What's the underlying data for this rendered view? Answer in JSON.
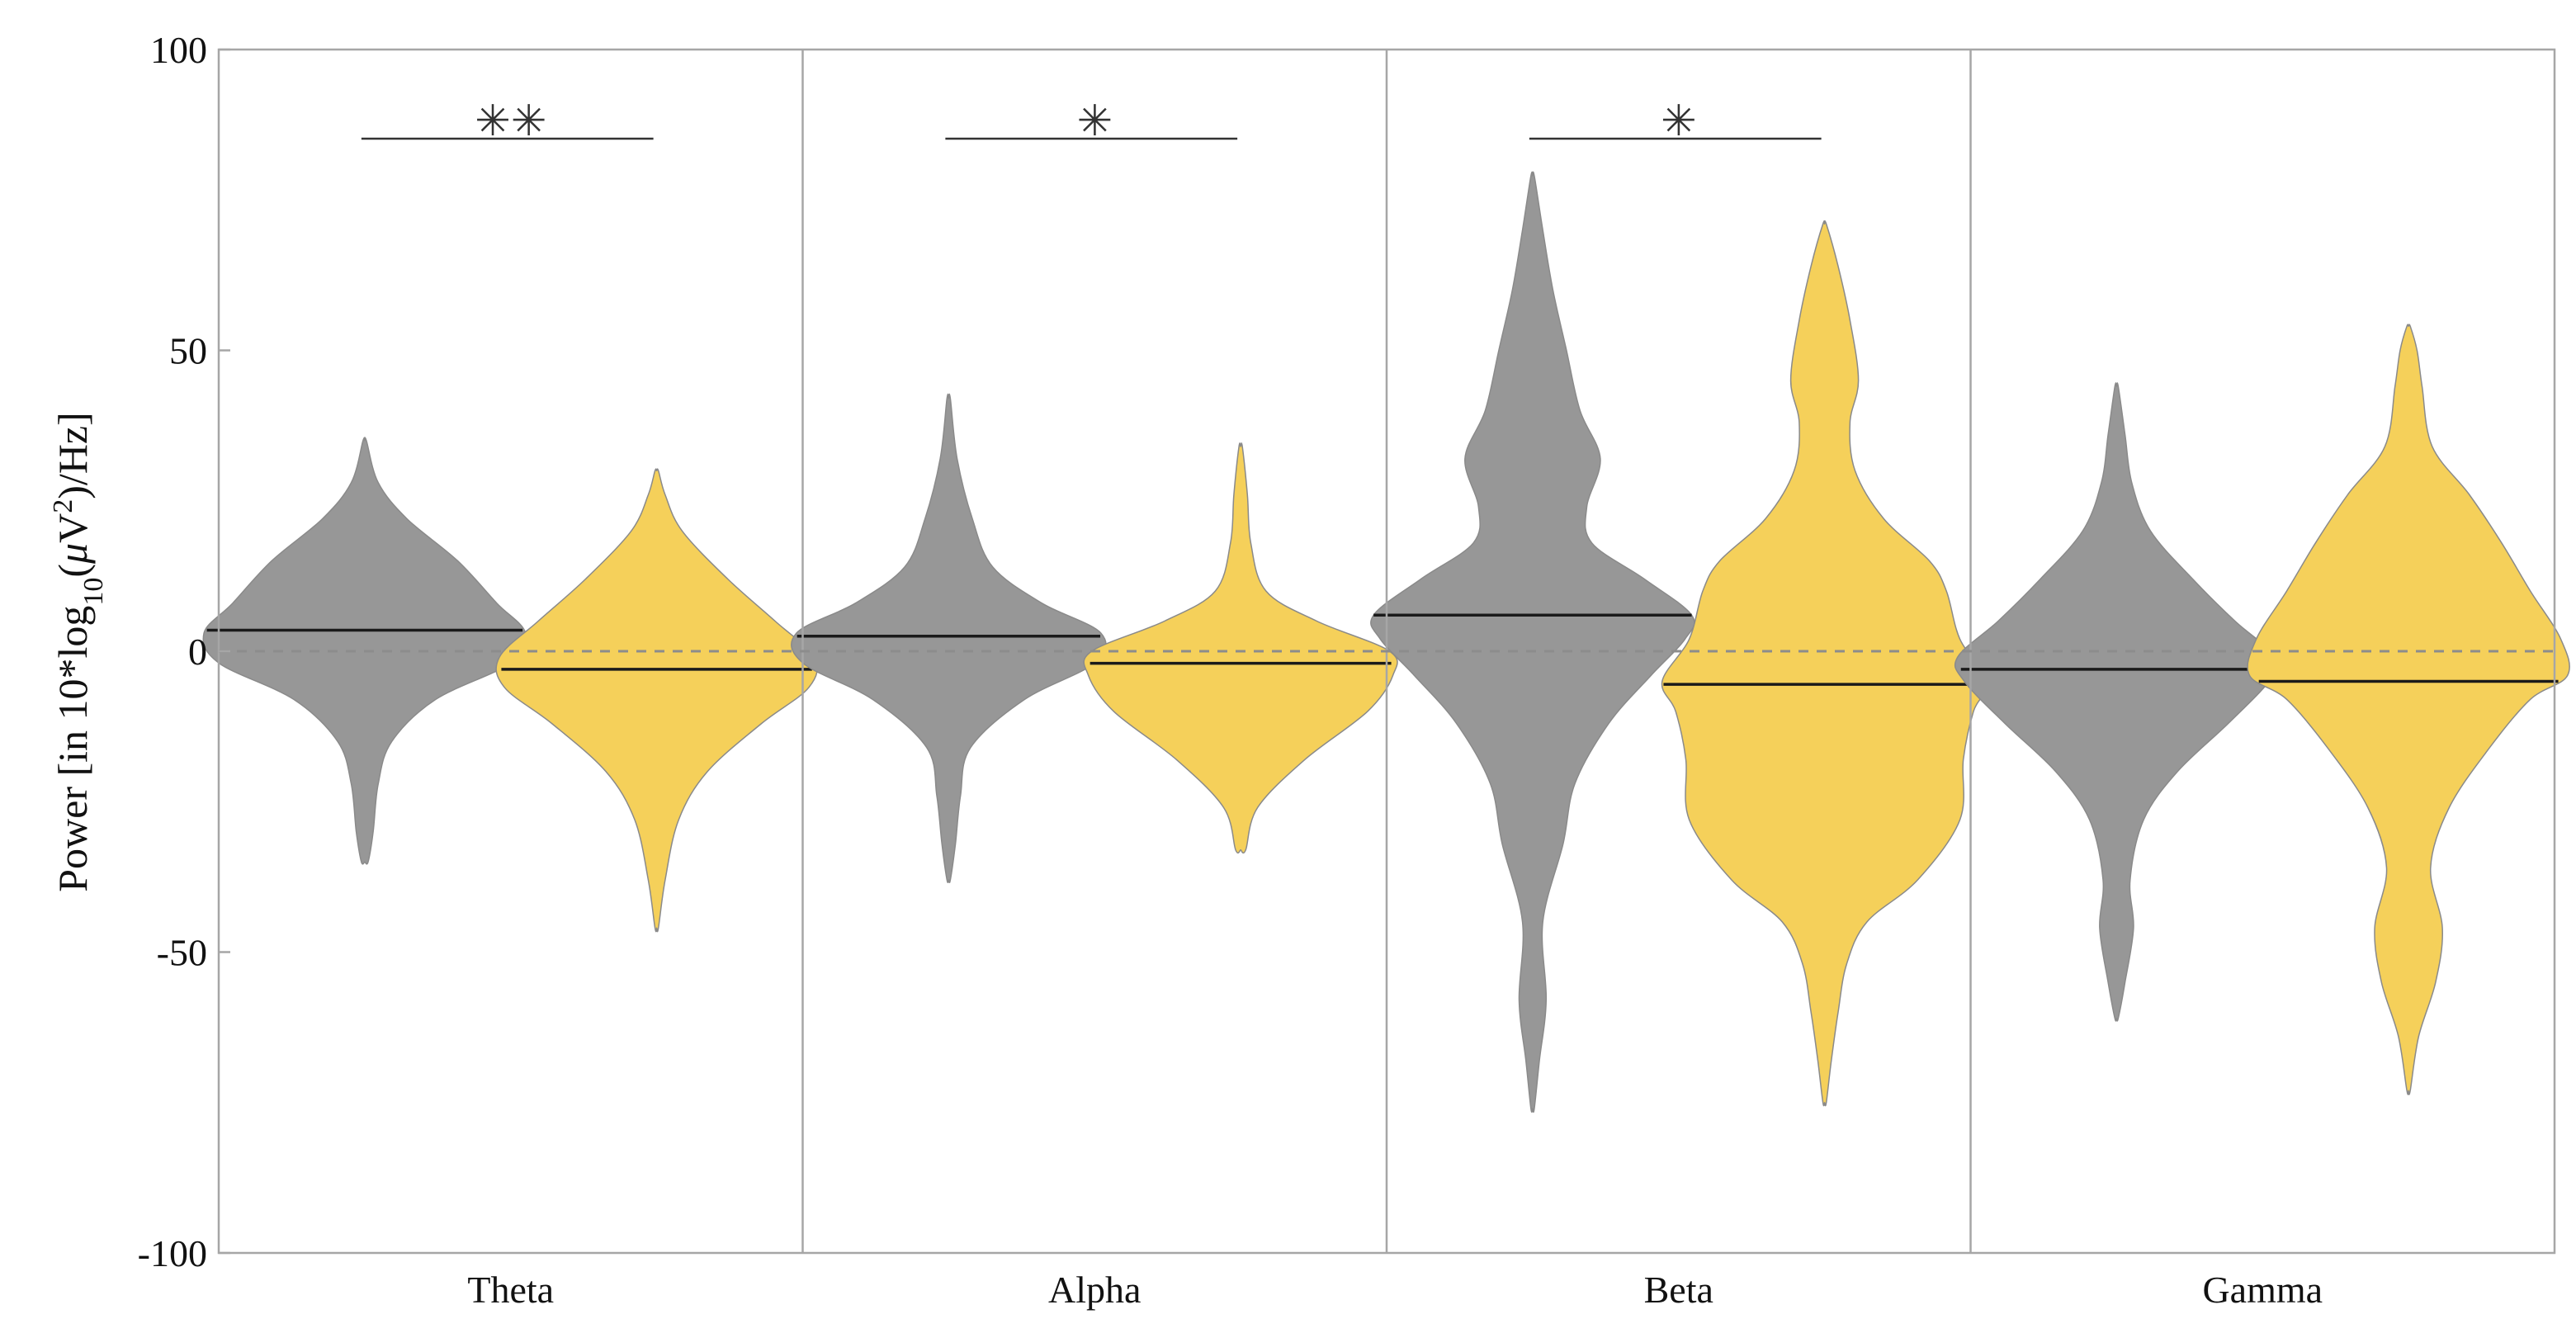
{
  "chart_data": {
    "type": "violin",
    "ylabel": {
      "pre": "Power [in 10*log",
      "sub": "10",
      "mid": "(",
      "mu": "μ",
      "v": "V",
      "sup": "2",
      "post": ")/Hz]"
    },
    "ylim": [
      -100,
      100
    ],
    "yticks": [
      "-100",
      "-50",
      "0",
      "50",
      "100"
    ],
    "reference_line": 0,
    "categories": [
      "Theta",
      "Alpha",
      "Beta",
      "Gamma"
    ],
    "group_colors": [
      "#979797",
      "#f5d05a"
    ],
    "groups": [
      {
        "category": "Theta",
        "significance": "**",
        "violins": [
          {
            "median": 3.5,
            "min": -35,
            "max": 35,
            "profile": [
              [
                -35,
                0.02
              ],
              [
                -30,
                0.05
              ],
              [
                -22,
                0.08
              ],
              [
                -15,
                0.16
              ],
              [
                -8,
                0.42
              ],
              [
                -2,
                0.86
              ],
              [
                3,
                0.95
              ],
              [
                8,
                0.78
              ],
              [
                15,
                0.55
              ],
              [
                22,
                0.25
              ],
              [
                28,
                0.08
              ],
              [
                35,
                0.01
              ]
            ]
          },
          {
            "median": -3,
            "min": -46,
            "max": 30,
            "profile": [
              [
                -46,
                0.01
              ],
              [
                -38,
                0.05
              ],
              [
                -28,
                0.13
              ],
              [
                -20,
                0.3
              ],
              [
                -12,
                0.62
              ],
              [
                -6,
                0.9
              ],
              [
                -1,
                0.93
              ],
              [
                5,
                0.7
              ],
              [
                12,
                0.42
              ],
              [
                20,
                0.15
              ],
              [
                26,
                0.05
              ],
              [
                30,
                0.01
              ]
            ]
          }
        ]
      },
      {
        "category": "Alpha",
        "significance": "*",
        "violins": [
          {
            "median": 2.5,
            "min": -38,
            "max": 42,
            "profile": [
              [
                -38,
                0.01
              ],
              [
                -32,
                0.04
              ],
              [
                -24,
                0.07
              ],
              [
                -16,
                0.13
              ],
              [
                -8,
                0.45
              ],
              [
                -2,
                0.86
              ],
              [
                3,
                0.9
              ],
              [
                8,
                0.55
              ],
              [
                14,
                0.26
              ],
              [
                22,
                0.14
              ],
              [
                32,
                0.05
              ],
              [
                42,
                0.01
              ]
            ]
          },
          {
            "median": -2,
            "min": -33,
            "max": 34,
            "profile": [
              [
                -33,
                0.03
              ],
              [
                -26,
                0.1
              ],
              [
                -18,
                0.38
              ],
              [
                -10,
                0.75
              ],
              [
                -4,
                0.9
              ],
              [
                0,
                0.88
              ],
              [
                5,
                0.45
              ],
              [
                10,
                0.15
              ],
              [
                18,
                0.06
              ],
              [
                26,
                0.04
              ],
              [
                34,
                0.01
              ]
            ]
          }
        ]
      },
      {
        "category": "Beta",
        "significance": "*",
        "violins": [
          {
            "median": 6,
            "min": -76,
            "max": 79,
            "profile": [
              [
                -76,
                0.01
              ],
              [
                -68,
                0.04
              ],
              [
                -58,
                0.08
              ],
              [
                -45,
                0.06
              ],
              [
                -32,
                0.18
              ],
              [
                -22,
                0.25
              ],
              [
                -12,
                0.45
              ],
              [
                -4,
                0.7
              ],
              [
                2,
                0.9
              ],
              [
                6,
                0.94
              ],
              [
                12,
                0.66
              ],
              [
                18,
                0.35
              ],
              [
                24,
                0.32
              ],
              [
                32,
                0.4
              ],
              [
                40,
                0.28
              ],
              [
                50,
                0.2
              ],
              [
                60,
                0.12
              ],
              [
                70,
                0.06
              ],
              [
                79,
                0.01
              ]
            ]
          },
          {
            "median": -5.5,
            "min": -75,
            "max": 71,
            "profile": [
              [
                -75,
                0.01
              ],
              [
                -68,
                0.04
              ],
              [
                -60,
                0.08
              ],
              [
                -52,
                0.13
              ],
              [
                -45,
                0.25
              ],
              [
                -38,
                0.55
              ],
              [
                -28,
                0.8
              ],
              [
                -18,
                0.82
              ],
              [
                -10,
                0.88
              ],
              [
                -5,
                0.96
              ],
              [
                2,
                0.8
              ],
              [
                10,
                0.72
              ],
              [
                15,
                0.62
              ],
              [
                22,
                0.35
              ],
              [
                30,
                0.18
              ],
              [
                38,
                0.15
              ],
              [
                45,
                0.2
              ],
              [
                55,
                0.15
              ],
              [
                64,
                0.08
              ],
              [
                71,
                0.01
              ]
            ]
          }
        ]
      },
      {
        "category": "Gamma",
        "significance": "",
        "violins": [
          {
            "median": -3,
            "min": -61,
            "max": 44,
            "profile": [
              [
                -61,
                0.01
              ],
              [
                -55,
                0.05
              ],
              [
                -46,
                0.1
              ],
              [
                -38,
                0.08
              ],
              [
                -28,
                0.16
              ],
              [
                -20,
                0.36
              ],
              [
                -12,
                0.66
              ],
              [
                -5,
                0.9
              ],
              [
                -1,
                0.94
              ],
              [
                5,
                0.7
              ],
              [
                12,
                0.45
              ],
              [
                20,
                0.2
              ],
              [
                28,
                0.09
              ],
              [
                36,
                0.05
              ],
              [
                44,
                0.01
              ]
            ]
          },
          {
            "median": -5,
            "min": -73,
            "max": 54,
            "profile": [
              [
                -73,
                0.01
              ],
              [
                -64,
                0.06
              ],
              [
                -55,
                0.16
              ],
              [
                -46,
                0.2
              ],
              [
                -36,
                0.13
              ],
              [
                -26,
                0.24
              ],
              [
                -16,
                0.48
              ],
              [
                -8,
                0.72
              ],
              [
                -4,
                0.94
              ],
              [
                2,
                0.9
              ],
              [
                10,
                0.72
              ],
              [
                18,
                0.55
              ],
              [
                26,
                0.36
              ],
              [
                34,
                0.14
              ],
              [
                44,
                0.08
              ],
              [
                50,
                0.05
              ],
              [
                54,
                0.01
              ]
            ]
          }
        ]
      }
    ]
  }
}
